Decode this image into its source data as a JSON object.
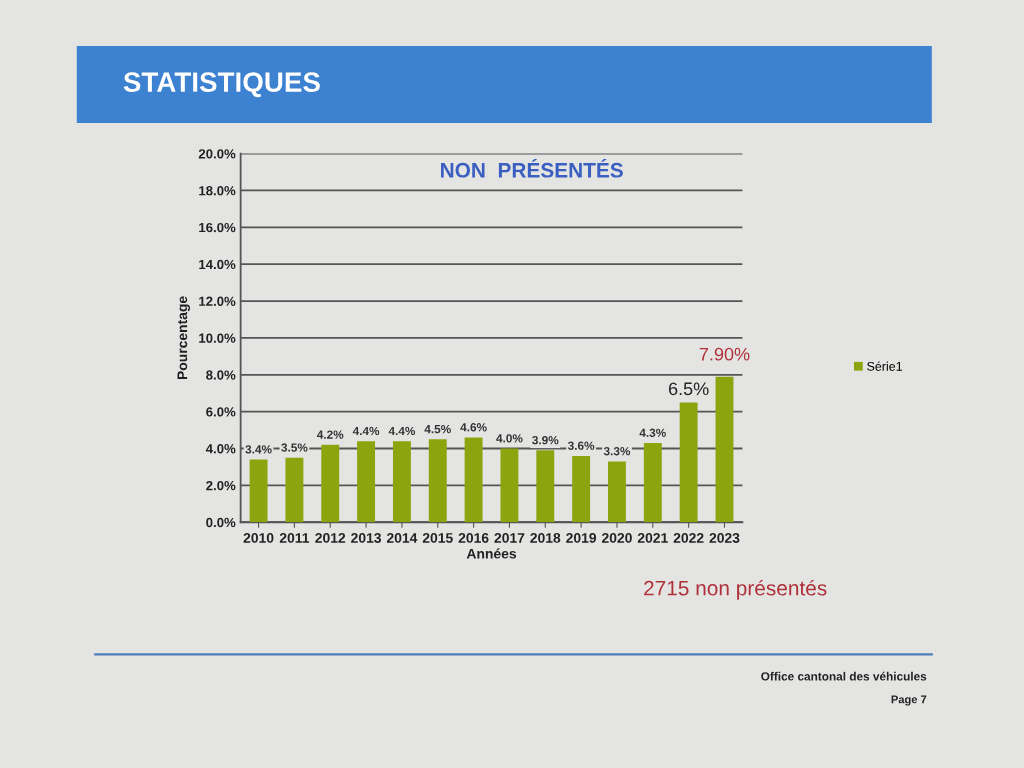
{
  "chart_data": {
    "type": "bar",
    "title": "STATISTIQUES",
    "subtitle": "NON  PRÉSENTÉS",
    "xlabel": "Années",
    "ylabel": "Pourcentage",
    "categories": [
      "2010",
      "2011",
      "2012",
      "2013",
      "2014",
      "2015",
      "2016",
      "2017",
      "2018",
      "2019",
      "2020",
      "2021",
      "2022",
      "2023"
    ],
    "series": [
      {
        "name": "Série1",
        "color": "#8ca50f",
        "values": [
          3.4,
          3.5,
          4.2,
          4.4,
          4.4,
          4.5,
          4.6,
          4.0,
          3.9,
          3.6,
          3.3,
          4.3,
          6.5,
          7.9
        ],
        "value_labels": [
          "3.4%",
          "3.5%",
          "4.2%",
          "4.4%",
          "4.4%",
          "4.5%",
          "4.6%",
          "4.0%",
          "3.9%",
          "3.6%",
          "3.3%",
          "4.3%",
          "6.5%",
          null
        ]
      }
    ],
    "ylim": [
      0,
      20
    ],
    "yticks": [
      {
        "value": 0,
        "label": "0.0%"
      },
      {
        "value": 2,
        "label": "2.0%"
      },
      {
        "value": 4,
        "label": "4.0%"
      },
      {
        "value": 6,
        "label": "6.0%"
      },
      {
        "value": 8,
        "label": "8.0%"
      },
      {
        "value": 10,
        "label": "10.0%"
      },
      {
        "value": 12,
        "label": "12.0%"
      },
      {
        "value": 14,
        "label": "14.0%"
      },
      {
        "value": 16,
        "label": "16.0%"
      },
      {
        "value": 18,
        "label": "18.0%"
      },
      {
        "value": 20,
        "label": "20.0%"
      }
    ],
    "grid": "y",
    "legend": "right",
    "annotations": [
      {
        "text": "7.90%",
        "x": "2023",
        "y": 7.9
      },
      "2715 non présentés",
      "Office cantonal des véhicules",
      "Page 7"
    ]
  }
}
